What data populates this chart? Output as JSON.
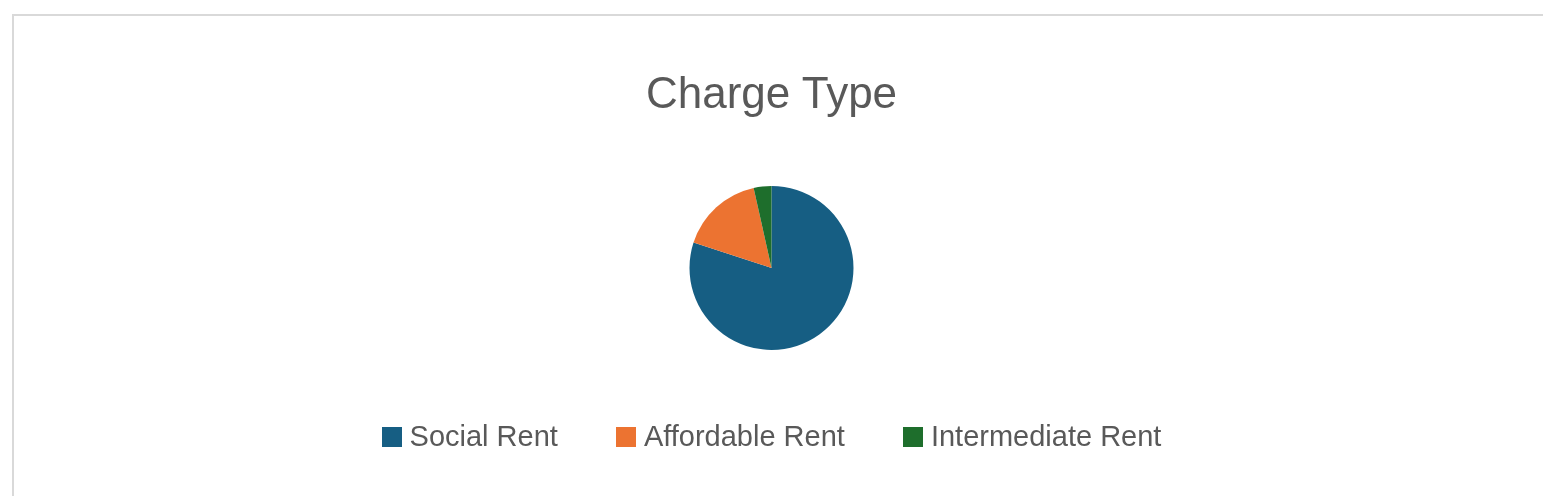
{
  "chart_data": {
    "type": "pie",
    "title": "Charge Type",
    "categories": [
      "Social Rent",
      "Affordable Rent",
      "Intermediate Rent"
    ],
    "values": [
      80,
      16.5,
      3.5
    ],
    "colors": [
      "#165e83",
      "#ec7331",
      "#1e6e2c"
    ],
    "legend": "bottom"
  }
}
